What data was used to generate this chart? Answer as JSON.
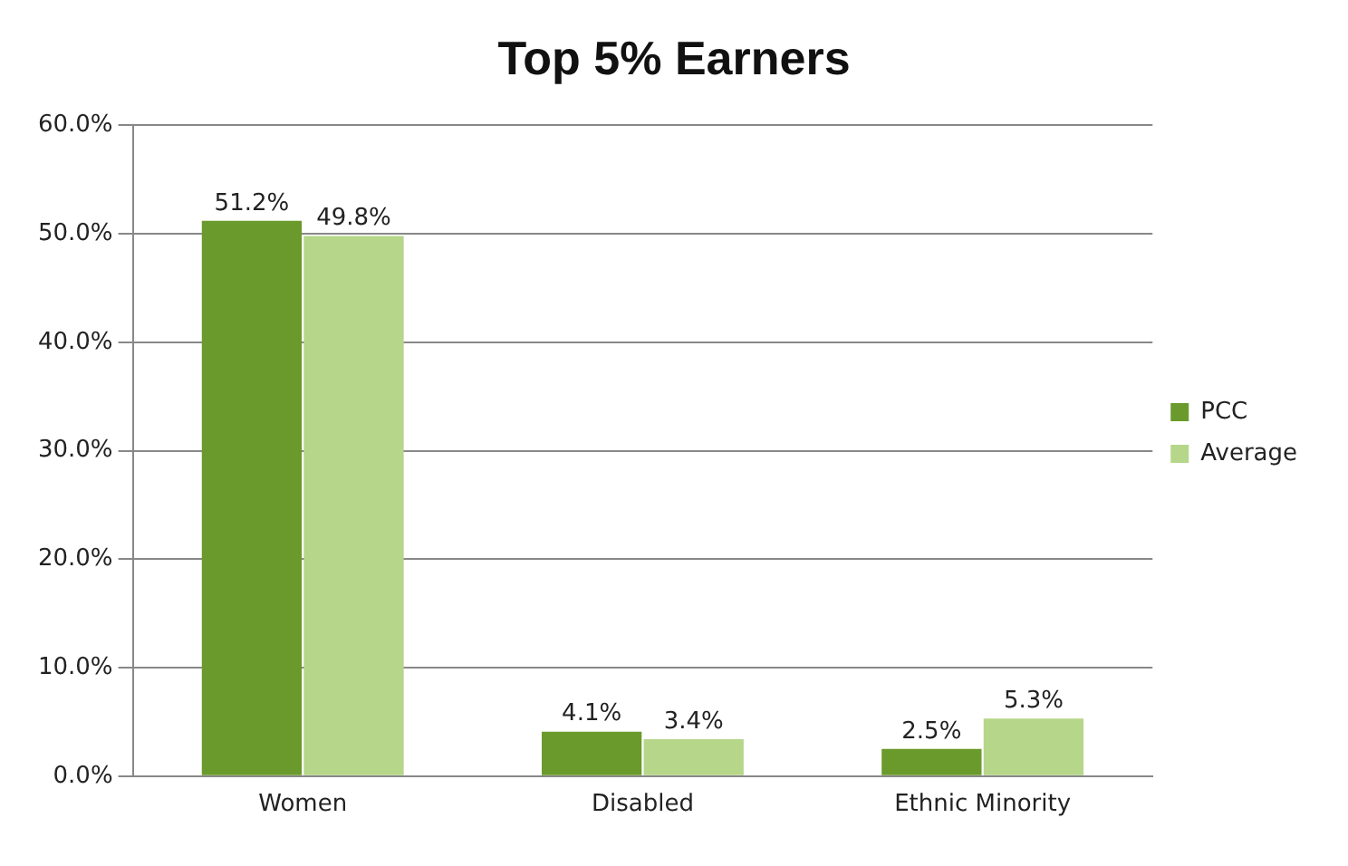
{
  "chart_data": {
    "type": "bar",
    "title": "Top 5% Earners",
    "categories": [
      "Women",
      "Disabled",
      "Ethnic Minority"
    ],
    "series": [
      {
        "name": "PCC",
        "color": "#6b9a2c",
        "values": [
          51.2,
          4.1,
          2.5
        ],
        "value_labels": [
          "51.2%",
          "4.1%",
          "2.5%"
        ]
      },
      {
        "name": "Average",
        "color": "#b6d68a",
        "values": [
          49.8,
          3.4,
          5.3
        ],
        "value_labels": [
          "49.8%",
          "3.4%",
          "5.3%"
        ]
      }
    ],
    "ylim": [
      0,
      60
    ],
    "yticks": [
      {
        "value": 0,
        "label": "0.0%"
      },
      {
        "value": 10,
        "label": "10.0%"
      },
      {
        "value": 20,
        "label": "20.0%"
      },
      {
        "value": 30,
        "label": "30.0%"
      },
      {
        "value": 40,
        "label": "40.0%"
      },
      {
        "value": 50,
        "label": "50.0%"
      },
      {
        "value": 60,
        "label": "60.0%"
      }
    ],
    "grid": "y",
    "legend": "right"
  }
}
